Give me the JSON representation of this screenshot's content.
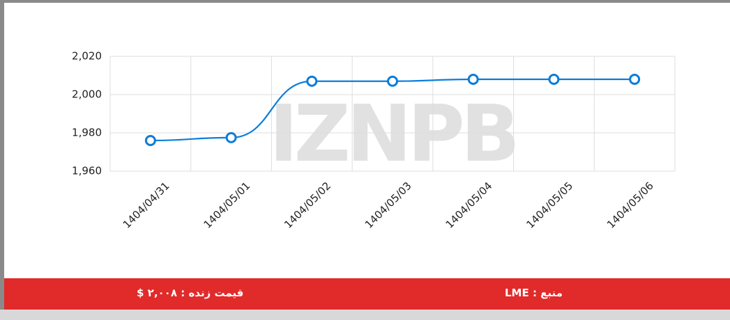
{
  "chart_data": {
    "type": "line",
    "categories": [
      "1404/04/31",
      "1404/05/01",
      "1404/05/02",
      "1404/05/03",
      "1404/05/04",
      "1404/05/05",
      "1404/05/06"
    ],
    "values": [
      1976,
      1977.5,
      2007,
      2007,
      2008,
      2008,
      2008
    ],
    "color": "#0b7dda",
    "ylim": [
      1960,
      2020
    ],
    "yticks": [
      {
        "value": 1960,
        "label": "1,960"
      },
      {
        "value": 1980,
        "label": "1,980"
      },
      {
        "value": 2000,
        "label": "2,000"
      },
      {
        "value": 2020,
        "label": "2,020"
      }
    ],
    "grid": true,
    "watermark": "IZNPB"
  },
  "footer": {
    "source": "منبع : LME",
    "live_price": "قیمت زنده : ۲,۰۰۸ $"
  }
}
